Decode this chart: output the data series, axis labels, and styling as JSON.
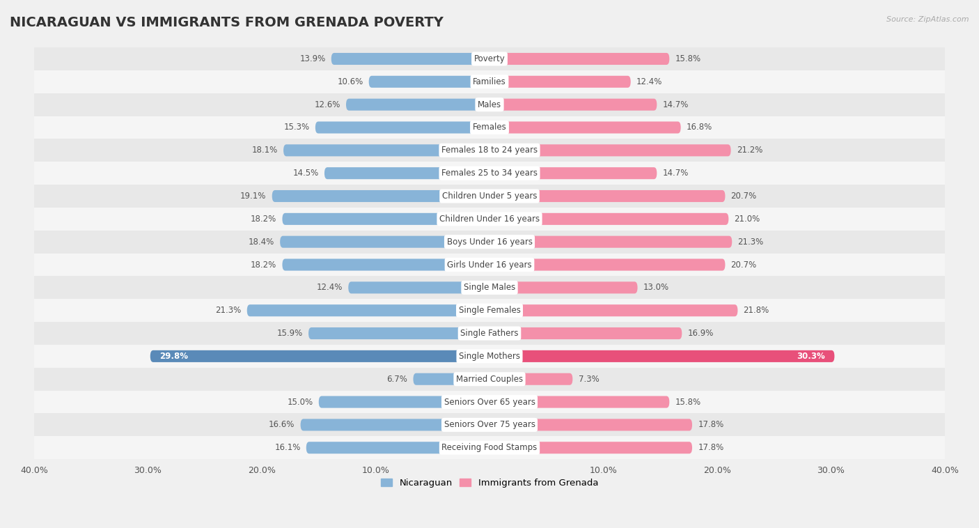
{
  "title": "NICARAGUAN VS IMMIGRANTS FROM GRENADA POVERTY",
  "source": "Source: ZipAtlas.com",
  "categories": [
    "Poverty",
    "Families",
    "Males",
    "Females",
    "Females 18 to 24 years",
    "Females 25 to 34 years",
    "Children Under 5 years",
    "Children Under 16 years",
    "Boys Under 16 years",
    "Girls Under 16 years",
    "Single Males",
    "Single Females",
    "Single Fathers",
    "Single Mothers",
    "Married Couples",
    "Seniors Over 65 years",
    "Seniors Over 75 years",
    "Receiving Food Stamps"
  ],
  "nicaraguan": [
    13.9,
    10.6,
    12.6,
    15.3,
    18.1,
    14.5,
    19.1,
    18.2,
    18.4,
    18.2,
    12.4,
    21.3,
    15.9,
    29.8,
    6.7,
    15.0,
    16.6,
    16.1
  ],
  "grenada": [
    15.8,
    12.4,
    14.7,
    16.8,
    21.2,
    14.7,
    20.7,
    21.0,
    21.3,
    20.7,
    13.0,
    21.8,
    16.9,
    30.3,
    7.3,
    15.8,
    17.8,
    17.8
  ],
  "nicaraguan_color": "#88b4d8",
  "grenada_color": "#f490aa",
  "single_mothers_nic_color": "#5a8ab8",
  "single_mothers_gren_color": "#e8507a",
  "background_color": "#f0f0f0",
  "row_bg_odd": "#e8e8e8",
  "row_bg_even": "#f5f5f5",
  "xlim": 40.0,
  "bar_height": 0.52,
  "title_fontsize": 14,
  "label_fontsize": 8.5,
  "value_fontsize": 8.5,
  "legend_label_nicaraguan": "Nicaraguan",
  "legend_label_grenada": "Immigrants from Grenada",
  "white_text_threshold": 25.0
}
